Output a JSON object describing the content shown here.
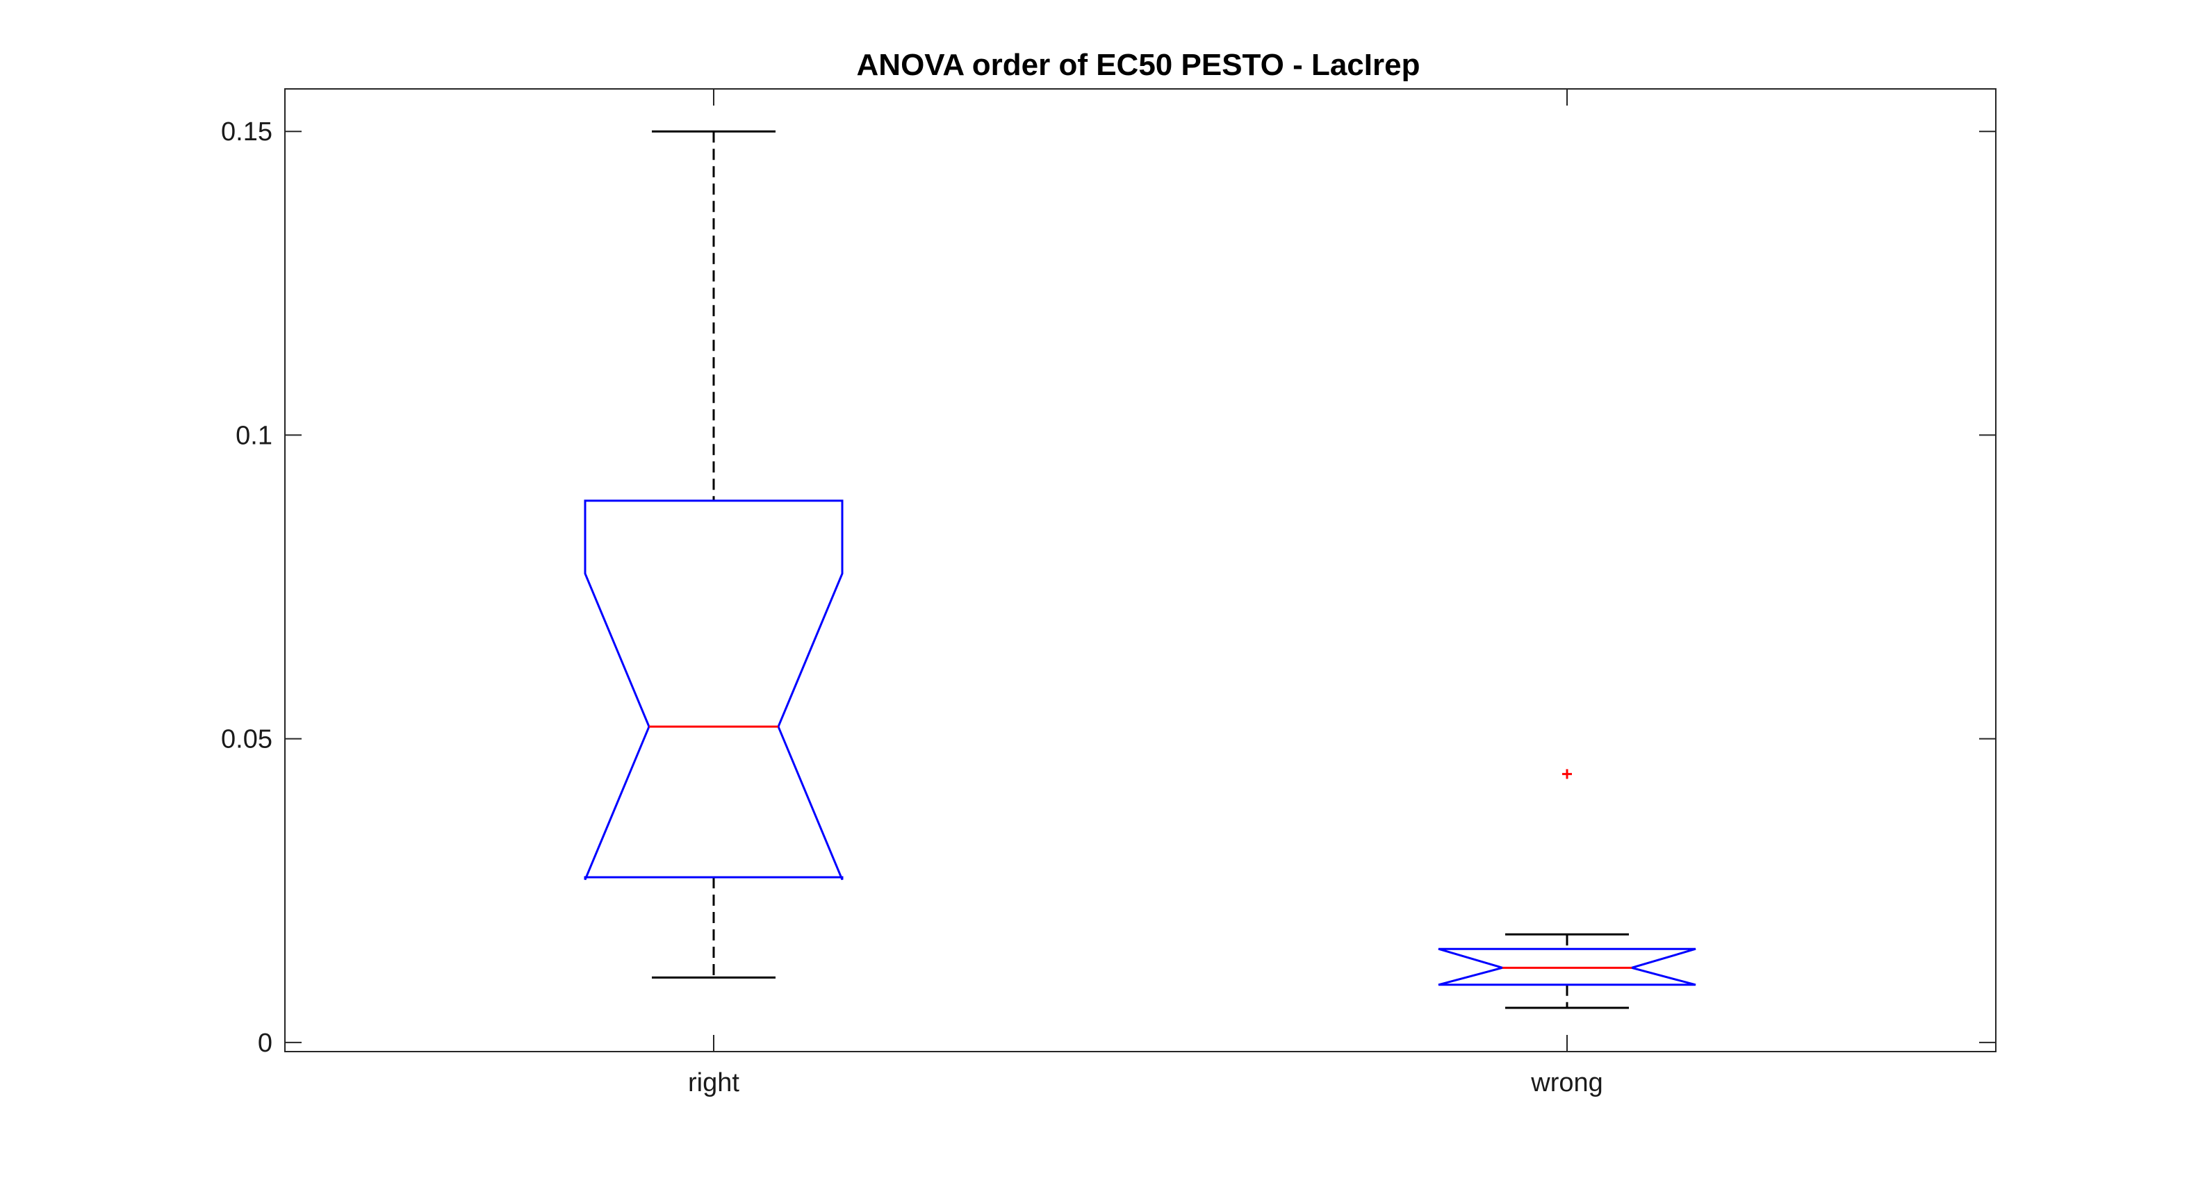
{
  "chart_data": {
    "type": "boxplot",
    "title": "ANOVA order of EC50 PESTO - LacIrep",
    "xlabel": "",
    "ylabel": "",
    "ylim": [
      -0.0015,
      0.157
    ],
    "yticks": [
      0,
      0.05,
      0.1,
      0.15
    ],
    "ytick_labels": [
      "0",
      "0.05",
      "0.1",
      "0.15"
    ],
    "categories": [
      "right",
      "wrong"
    ],
    "notched": true,
    "grid": false,
    "legend": "none",
    "boxes": [
      {
        "label": "right",
        "whisker_low": 0.0107,
        "q1": 0.0272,
        "median": 0.052,
        "q3": 0.0892,
        "whisker_high": 0.15,
        "notch_low": 0.0772,
        "notch_high": 0.0772,
        "notch_lo": 0.0268,
        "notch_hi": 0.0772,
        "outliers": []
      },
      {
        "label": "wrong",
        "whisker_low": 0.0057,
        "q1": 0.0095,
        "median": 0.0123,
        "q3": 0.0154,
        "whisker_high": 0.0178,
        "notch_lo": 0.0095,
        "notch_hi": 0.0154,
        "outliers": [
          0.0442
        ]
      }
    ],
    "colors": {
      "box": "#0000ff",
      "median": "#ff0000",
      "whisker": "#000000",
      "outlier": "#ff0000",
      "axes": "#262626"
    }
  }
}
